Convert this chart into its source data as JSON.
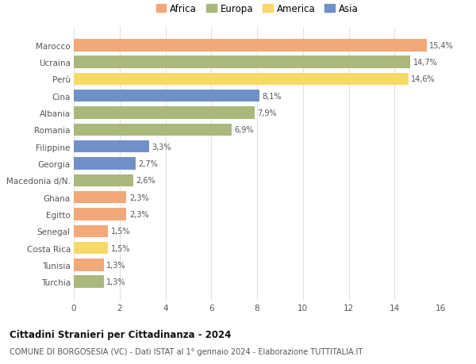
{
  "categories": [
    "Turchia",
    "Tunisia",
    "Costa Rica",
    "Senegal",
    "Egitto",
    "Ghana",
    "Macedonia d/N.",
    "Georgia",
    "Filippine",
    "Romania",
    "Albania",
    "Cina",
    "Perù",
    "Ucraina",
    "Marocco"
  ],
  "values": [
    1.3,
    1.3,
    1.5,
    1.5,
    2.3,
    2.3,
    2.6,
    2.7,
    3.3,
    6.9,
    7.9,
    8.1,
    14.6,
    14.7,
    15.4
  ],
  "colors": [
    "#aab87c",
    "#f2a878",
    "#f7d96a",
    "#f2a878",
    "#f2a878",
    "#f2a878",
    "#aab87c",
    "#7090c8",
    "#7090c8",
    "#aab87c",
    "#aab87c",
    "#7090c8",
    "#f7d96a",
    "#aab87c",
    "#f2a878"
  ],
  "labels": [
    "1,3%",
    "1,3%",
    "1,5%",
    "1,5%",
    "2,3%",
    "2,3%",
    "2,6%",
    "2,7%",
    "3,3%",
    "6,9%",
    "7,9%",
    "8,1%",
    "14,6%",
    "14,7%",
    "15,4%"
  ],
  "legend_labels": [
    "Africa",
    "Europa",
    "America",
    "Asia"
  ],
  "legend_colors": [
    "#f2a878",
    "#aab87c",
    "#f7d96a",
    "#7090c8"
  ],
  "title": "Cittadini Stranieri per Cittadinanza - 2024",
  "subtitle": "COMUNE DI BORGOSESIA (VC) - Dati ISTAT al 1° gennaio 2024 - Elaborazione TUTTITALIA.IT",
  "xlim": [
    0,
    16
  ],
  "xticks": [
    0,
    2,
    4,
    6,
    8,
    10,
    12,
    14,
    16
  ],
  "background_color": "#ffffff",
  "grid_color": "#e0e0e0",
  "bar_height": 0.72
}
